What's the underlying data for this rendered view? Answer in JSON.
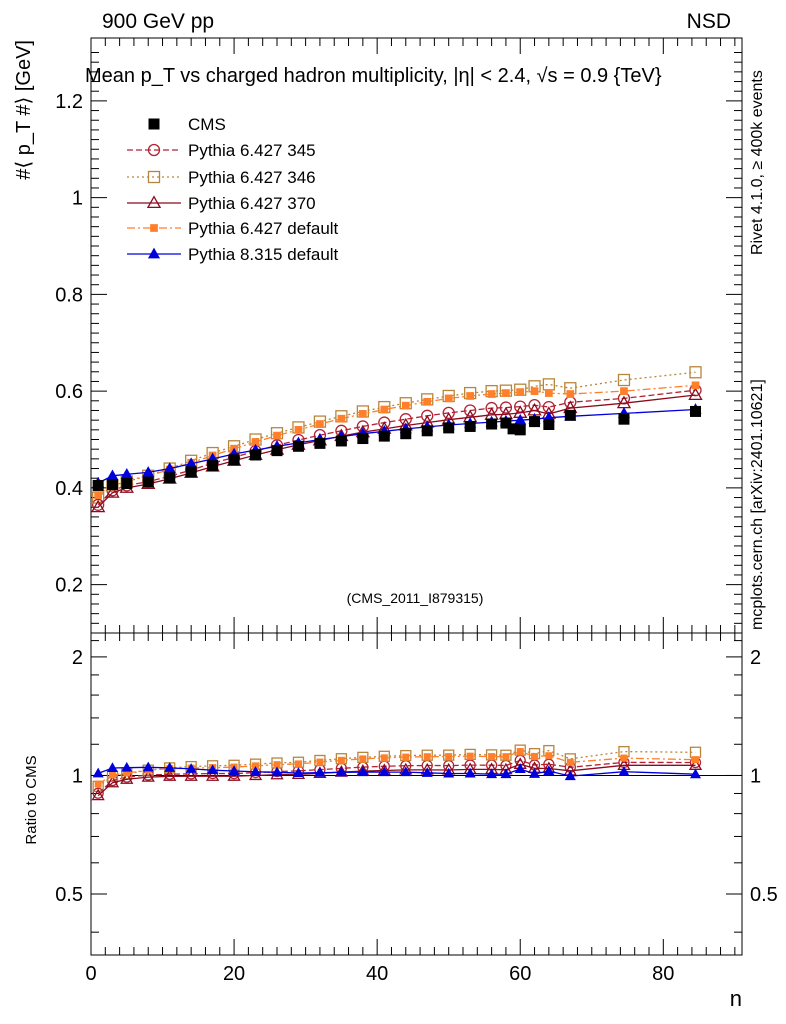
{
  "header": {
    "left": "900 GeV pp",
    "right": "NSD",
    "title": "Mean p_T vs charged hadron multiplicity, |η| < 2.4, √s = 0.9 {TeV}"
  },
  "side_labels": {
    "rivet": "Rivet 4.1.0, ≥ 400k events",
    "mcplots": "mcplots.cern.ch [arXiv:2401.10621]"
  },
  "watermark": "(CMS_2011_I879315)",
  "colors": {
    "cms": "#000000",
    "p345": "#b22234",
    "p346": "#b8863b",
    "p370": "#8b0a1e",
    "p6def": "#ff7f2a",
    "p8def": "#0000dd"
  },
  "chart_data": {
    "type": "line",
    "xlabel": "n",
    "ylabel": "#⟨ p_T #⟩ [GeV]",
    "ratio_ylabel": "Ratio to CMS",
    "xlim": [
      0,
      91
    ],
    "ylim": [
      0.1,
      1.33
    ],
    "ratio_ylim": [
      0.35,
      2.3
    ],
    "x_ticks": [
      0,
      20,
      40,
      60,
      80
    ],
    "y_ticks": [
      0.2,
      0.4,
      0.6,
      0.8,
      1,
      1.2
    ],
    "y_tick_labels": [
      "0.2",
      "0.4",
      "0.6",
      "0.8",
      "1",
      "1.2"
    ],
    "ratio_ticks": [
      0.5,
      1,
      2
    ],
    "ratio_tick_labels": [
      "0.5",
      "1",
      "2"
    ],
    "x_tick_labels": [
      "0",
      "20",
      "40",
      "60",
      "80"
    ],
    "legend": [
      "CMS",
      "Pythia 6.427 345",
      "Pythia 6.427 346",
      "Pythia 6.427 370",
      "Pythia 6.427 default",
      "Pythia 8.315 default"
    ],
    "series": [
      {
        "key": "cms",
        "name": "CMS",
        "marker": "filled-square",
        "line": "none",
        "x": [
          1,
          3,
          5,
          8,
          11,
          14,
          17,
          20,
          23,
          26,
          29,
          32,
          35,
          38,
          41,
          44,
          47,
          50,
          53,
          56,
          58,
          59,
          60,
          62,
          64,
          67,
          74.5,
          84.5
        ],
        "y": [
          0.405,
          0.407,
          0.409,
          0.412,
          0.421,
          0.433,
          0.446,
          0.458,
          0.468,
          0.477,
          0.486,
          0.492,
          0.497,
          0.502,
          0.507,
          0.512,
          0.518,
          0.524,
          0.527,
          0.532,
          0.534,
          0.522,
          0.52,
          0.537,
          0.531,
          0.55,
          0.542,
          0.558
        ]
      },
      {
        "key": "p345",
        "name": "Pythia 6.427 345",
        "marker": "open-circle",
        "line": "dashed",
        "x": [
          1,
          3,
          5,
          8,
          11,
          14,
          17,
          20,
          23,
          26,
          29,
          32,
          35,
          38,
          41,
          44,
          47,
          50,
          53,
          56,
          58,
          60,
          62,
          64,
          67,
          74.5,
          84.5
        ],
        "y": [
          0.365,
          0.395,
          0.405,
          0.413,
          0.424,
          0.437,
          0.451,
          0.463,
          0.476,
          0.488,
          0.499,
          0.509,
          0.518,
          0.527,
          0.535,
          0.542,
          0.549,
          0.555,
          0.56,
          0.565,
          0.566,
          0.568,
          0.571,
          0.567,
          0.577,
          0.585,
          0.602
        ]
      },
      {
        "key": "p346",
        "name": "Pythia 6.427 346",
        "marker": "open-square",
        "line": "dotted",
        "x": [
          1,
          3,
          5,
          8,
          11,
          14,
          17,
          20,
          23,
          26,
          29,
          32,
          35,
          38,
          41,
          44,
          47,
          50,
          53,
          56,
          58,
          60,
          62,
          64,
          67,
          74.5,
          84.5
        ],
        "y": [
          0.38,
          0.405,
          0.413,
          0.425,
          0.44,
          0.456,
          0.472,
          0.486,
          0.5,
          0.513,
          0.525,
          0.537,
          0.548,
          0.558,
          0.567,
          0.575,
          0.583,
          0.59,
          0.596,
          0.6,
          0.601,
          0.603,
          0.61,
          0.614,
          0.606,
          0.623,
          0.639
        ]
      },
      {
        "key": "p370",
        "name": "Pythia 6.427 370",
        "marker": "open-triangle",
        "line": "solid",
        "x": [
          1,
          3,
          5,
          8,
          11,
          14,
          17,
          20,
          23,
          26,
          29,
          32,
          35,
          38,
          41,
          44,
          47,
          50,
          53,
          56,
          58,
          60,
          62,
          64,
          67,
          74.5,
          84.5
        ],
        "y": [
          0.36,
          0.39,
          0.4,
          0.408,
          0.419,
          0.431,
          0.444,
          0.456,
          0.468,
          0.479,
          0.489,
          0.498,
          0.507,
          0.515,
          0.522,
          0.529,
          0.535,
          0.541,
          0.546,
          0.551,
          0.552,
          0.555,
          0.56,
          0.553,
          0.565,
          0.575,
          0.592
        ]
      },
      {
        "key": "p6def",
        "name": "Pythia 6.427 default",
        "marker": "filled-small-square",
        "line": "dashdot",
        "x": [
          1,
          3,
          5,
          8,
          11,
          14,
          17,
          20,
          23,
          26,
          29,
          32,
          35,
          38,
          41,
          44,
          47,
          50,
          53,
          56,
          58,
          60,
          62,
          64,
          67,
          74.5,
          84.5
        ],
        "y": [
          0.385,
          0.408,
          0.415,
          0.425,
          0.438,
          0.452,
          0.467,
          0.481,
          0.495,
          0.508,
          0.52,
          0.532,
          0.543,
          0.553,
          0.562,
          0.57,
          0.578,
          0.585,
          0.59,
          0.594,
          0.596,
          0.598,
          0.6,
          0.596,
          0.594,
          0.6,
          0.612
        ]
      },
      {
        "key": "p8def",
        "name": "Pythia 8.315 default",
        "marker": "filled-triangle",
        "line": "solid",
        "x": [
          1,
          3,
          5,
          8,
          11,
          14,
          17,
          20,
          23,
          26,
          29,
          32,
          35,
          38,
          41,
          44,
          47,
          50,
          53,
          56,
          58,
          60,
          62,
          64,
          67,
          74.5,
          84.5
        ],
        "y": [
          0.41,
          0.425,
          0.428,
          0.432,
          0.44,
          0.45,
          0.46,
          0.47,
          0.478,
          0.486,
          0.493,
          0.5,
          0.506,
          0.512,
          0.517,
          0.522,
          0.526,
          0.53,
          0.533,
          0.536,
          0.538,
          0.54,
          0.542,
          0.545,
          0.548,
          0.554,
          0.562
        ]
      }
    ]
  }
}
